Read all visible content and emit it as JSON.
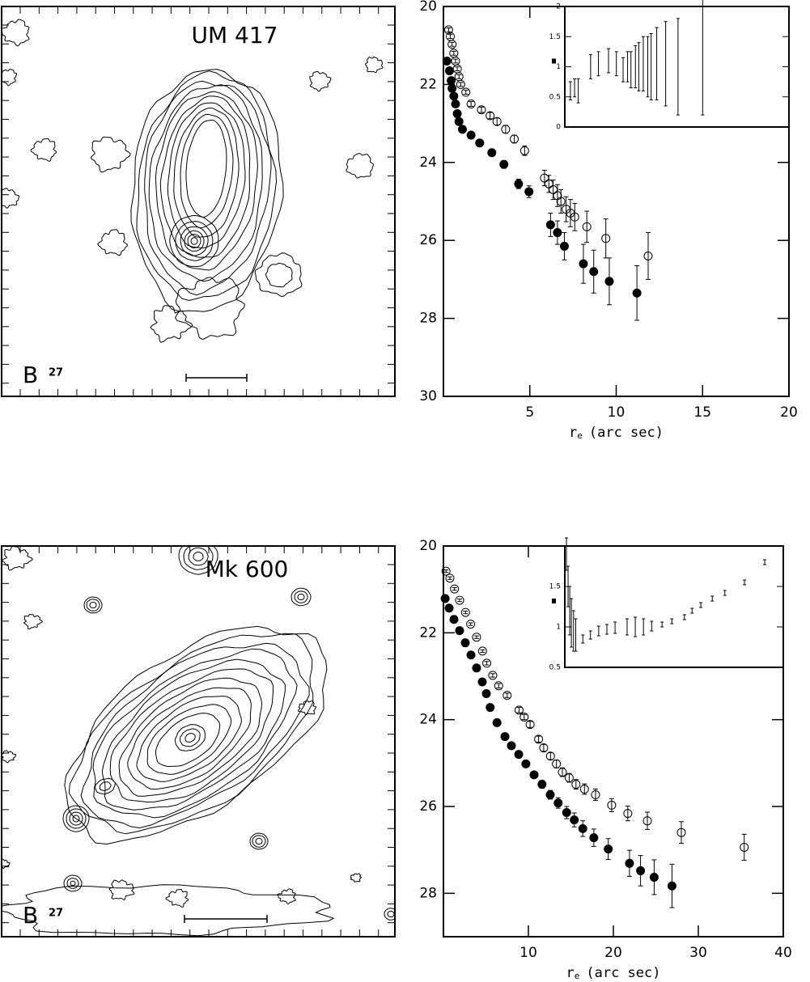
{
  "chart_data": [
    {
      "type": "contour",
      "title": "UM 417",
      "band": "B",
      "level": "27"
    },
    {
      "type": "scatter",
      "xlabel": [
        "r",
        "e",
        "(arc sec)"
      ],
      "xlim": [
        0,
        20
      ],
      "xticks": [
        5,
        10,
        15,
        20
      ],
      "ylim": [
        20,
        30
      ],
      "yticks": [
        20,
        22,
        24,
        26,
        28,
        30
      ],
      "yreversed": true,
      "series": [
        {
          "marker": "open",
          "color": "#000000",
          "x": [
            0.3,
            0.4,
            0.5,
            0.6,
            0.7,
            0.8,
            0.9,
            1.0,
            1.3,
            1.6,
            2.2,
            2.7,
            3.1,
            3.6,
            4.1,
            4.7,
            5.85,
            6.1,
            6.35,
            6.6,
            6.8,
            7.1,
            7.35,
            7.6,
            8.3,
            9.4,
            11.85
          ],
          "values": [
            20.6,
            20.77,
            20.97,
            21.2,
            21.4,
            21.6,
            21.8,
            22.0,
            22.2,
            22.5,
            22.65,
            22.8,
            22.95,
            23.15,
            23.4,
            23.7,
            24.4,
            24.55,
            24.7,
            24.85,
            25.0,
            25.2,
            25.3,
            25.4,
            25.65,
            25.95,
            26.4
          ],
          "errors": [
            0.05,
            0.05,
            0.05,
            0.05,
            0.05,
            0.05,
            0.05,
            0.05,
            0.05,
            0.06,
            0.07,
            0.08,
            0.09,
            0.1,
            0.1,
            0.12,
            0.2,
            0.22,
            0.25,
            0.28,
            0.3,
            0.32,
            0.35,
            0.35,
            0.4,
            0.5,
            0.6
          ]
        },
        {
          "marker": "filled",
          "color": "#000000",
          "x": [
            0.2,
            0.35,
            0.45,
            0.5,
            0.6,
            0.7,
            0.8,
            0.9,
            1.1,
            1.6,
            2.1,
            2.8,
            3.5,
            4.35,
            4.95,
            6.2,
            6.6,
            7.0,
            8.1,
            8.7,
            9.6,
            11.2
          ],
          "values": [
            21.4,
            21.65,
            21.9,
            22.1,
            22.3,
            22.5,
            22.75,
            22.95,
            23.15,
            23.3,
            23.5,
            23.75,
            24.05,
            24.55,
            24.75,
            25.6,
            25.8,
            26.15,
            26.6,
            26.8,
            27.05,
            27.35
          ],
          "errors": [
            0.05,
            0.05,
            0.05,
            0.05,
            0.05,
            0.05,
            0.05,
            0.05,
            0.05,
            0.06,
            0.07,
            0.08,
            0.1,
            0.12,
            0.15,
            0.3,
            0.3,
            0.35,
            0.5,
            0.55,
            0.6,
            0.7
          ]
        }
      ],
      "inset": {
        "xlim": [
          0,
          20
        ],
        "ylim": [
          0,
          2
        ],
        "yticks": [
          0,
          0.5,
          1,
          1.5,
          2
        ],
        "series": [
          {
            "color": "#000000",
            "x": [
              0.5,
              0.87,
              1.2,
              2.3,
              3.0,
              3.9,
              4.6,
              5.2,
              5.6,
              5.9,
              6.3,
              6.6,
              7.0,
              7.4,
              7.7,
              8.2,
              9.0,
              10.1,
              12.3
            ],
            "values": [
              0.6,
              0.65,
              0.6,
              1.0,
              1.05,
              1.1,
              1.05,
              0.95,
              1.0,
              0.95,
              1.0,
              1.0,
              1.05,
              1.0,
              1.0,
              1.05,
              1.05,
              1.0,
              1.2
            ],
            "errors": [
              0.15,
              0.15,
              0.2,
              0.2,
              0.2,
              0.2,
              0.2,
              0.2,
              0.25,
              0.3,
              0.35,
              0.4,
              0.45,
              0.5,
              0.55,
              0.6,
              0.7,
              0.8,
              1.0
            ]
          }
        ]
      }
    },
    {
      "type": "contour",
      "title": "Mk 600",
      "band": "B",
      "level": "27"
    },
    {
      "type": "scatter",
      "xlabel": [
        "r",
        "e",
        "(arc sec)"
      ],
      "xlim": [
        0,
        40
      ],
      "xticks": [
        10,
        20,
        30,
        40
      ],
      "ylim": [
        20,
        29
      ],
      "yticks": [
        20,
        22,
        24,
        26,
        28
      ],
      "yreversed": true,
      "series": [
        {
          "marker": "open",
          "color": "#000000",
          "x": [
            0.3,
            0.76,
            1.3,
            1.9,
            2.6,
            3.2,
            3.9,
            4.6,
            5.1,
            5.8,
            6.5,
            7.5,
            8.9,
            9.5,
            10.2,
            11.2,
            11.8,
            12.6,
            13.3,
            14.0,
            14.8,
            15.6,
            16.6,
            17.9,
            19.8,
            21.7,
            24.0,
            28.0,
            35.4
          ],
          "values": [
            20.58,
            20.74,
            20.99,
            21.25,
            21.53,
            21.8,
            22.1,
            22.42,
            22.7,
            22.98,
            23.22,
            23.44,
            23.78,
            23.94,
            24.11,
            24.45,
            24.65,
            24.84,
            25.02,
            25.21,
            25.34,
            25.49,
            25.6,
            25.73,
            25.97,
            26.16,
            26.33,
            26.6,
            26.94
          ],
          "errors": [
            0.03,
            0.03,
            0.03,
            0.03,
            0.03,
            0.03,
            0.03,
            0.03,
            0.04,
            0.04,
            0.05,
            0.05,
            0.06,
            0.06,
            0.07,
            0.07,
            0.08,
            0.08,
            0.09,
            0.1,
            0.1,
            0.11,
            0.12,
            0.13,
            0.15,
            0.17,
            0.2,
            0.25,
            0.3
          ]
        },
        {
          "marker": "filled",
          "color": "#000000",
          "x": [
            0.2,
            0.67,
            1.24,
            1.9,
            2.57,
            3.24,
            3.9,
            4.57,
            5.05,
            5.5,
            6.3,
            7.24,
            8.0,
            8.86,
            9.7,
            10.67,
            11.6,
            12.57,
            13.5,
            14.5,
            15.4,
            16.4,
            17.7,
            19.4,
            21.9,
            23.2,
            24.8,
            26.9
          ],
          "values": [
            21.21,
            21.43,
            21.69,
            21.95,
            22.23,
            22.51,
            22.81,
            23.13,
            23.4,
            23.72,
            24.07,
            24.39,
            24.6,
            24.8,
            25.02,
            25.27,
            25.49,
            25.73,
            25.92,
            26.14,
            26.31,
            26.51,
            26.72,
            26.98,
            27.31,
            27.48,
            27.63,
            27.83
          ],
          "errors": [
            0.03,
            0.03,
            0.03,
            0.03,
            0.03,
            0.03,
            0.03,
            0.03,
            0.04,
            0.04,
            0.05,
            0.05,
            0.06,
            0.06,
            0.07,
            0.08,
            0.09,
            0.1,
            0.12,
            0.14,
            0.16,
            0.18,
            0.2,
            0.24,
            0.3,
            0.35,
            0.4,
            0.5
          ]
        }
      ],
      "inset": {
        "xlim": [
          0,
          40
        ],
        "ylim": [
          0.5,
          2
        ],
        "yticks": [
          0.5,
          1,
          1.5
        ],
        "series": [
          {
            "color": "#000000",
            "x": [
              0.3,
              0.6,
              0.9,
              1.2,
              1.6,
              2.0,
              3.3,
              4.7,
              6.2,
              7.7,
              9.2,
              11.4,
              12.9,
              14.4,
              15.9,
              17.8,
              19.6,
              21.9,
              23.3,
              24.9,
              27.0,
              29.3,
              32.9,
              36.6
            ],
            "values": [
              1.9,
              1.5,
              1.2,
              1.05,
              0.95,
              0.9,
              0.85,
              0.9,
              0.95,
              0.97,
              0.99,
              1.0,
              1.0,
              1.0,
              1.01,
              1.03,
              1.07,
              1.12,
              1.2,
              1.27,
              1.35,
              1.42,
              1.55,
              1.8
            ],
            "errors": [
              0.2,
              0.25,
              0.3,
              0.3,
              0.25,
              0.2,
              0.05,
              0.05,
              0.06,
              0.06,
              0.07,
              0.1,
              0.12,
              0.1,
              0.06,
              0.03,
              0.03,
              0.03,
              0.03,
              0.03,
              0.03,
              0.03,
              0.03,
              0.03
            ]
          }
        ]
      }
    }
  ]
}
